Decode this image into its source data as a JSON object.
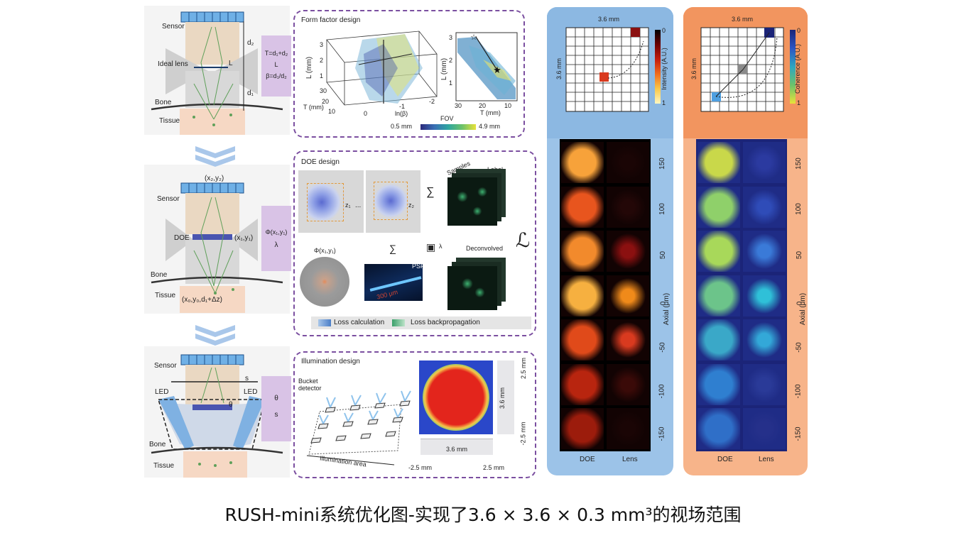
{
  "caption": "RUSH-mini系统优化图-实现了3.6 × 3.6 × 0.3 mm³的视场范围",
  "left": {
    "sensor": "Sensor",
    "ideal_lens": "Ideal lens",
    "L": "L",
    "d2": "d₂",
    "d1": "d₁",
    "bone": "Bone",
    "tissue": "Tissue",
    "doe": "DOE",
    "led": "LED",
    "s": "s",
    "theta": "θ",
    "x2y2": "(x₂,y₂)",
    "x1y1": "(x₁,y₁)",
    "x0y0": "(x₀,y₀,d₁+Δz)",
    "param1_a": "T=d₁+d₂",
    "param1_b": "L",
    "param1_c": "β=d₁/d₂",
    "param2_a": "Φ(x₁,y₁)",
    "param2_b": "λ",
    "param3_a": "θ",
    "param3_b": "s"
  },
  "panel1": {
    "title": "Form factor design",
    "l_mm": "L (mm)",
    "t_mm": "T (mm)",
    "ln_beta": "ln(β)",
    "fov": "FOV",
    "fov_min": "0.5 mm",
    "fov_max": "4.9 mm",
    "ticks_L": [
      "3",
      "2",
      "1"
    ],
    "ticks_T3d": [
      "30",
      "20",
      "10"
    ],
    "ticks_beta": [
      "0",
      "-1",
      "-2"
    ],
    "ticks_T2d": [
      "30",
      "20",
      "10"
    ],
    "ticks_L2d": [
      "3",
      "2",
      "1"
    ]
  },
  "panel2": {
    "title": "DOE design",
    "samples": "Samples",
    "label": "Label",
    "deconvolved": "Deconvolved",
    "phi": "Φ(x₁,y₁)",
    "psf": "PSF",
    "um300": "300 μm",
    "z1": "z₁",
    "z2": "z₂",
    "dots": "...",
    "lambda": "λ",
    "loss_calc": "Loss calculation",
    "loss_back": "Loss backpropagation",
    "loss_symbol": "ℒ"
  },
  "panel3": {
    "title": "Illumination design",
    "bucket": "Bucket detector",
    "illum_area": "Illumination area",
    "mm36": "3.6 mm",
    "mm36v": "3.6 mm",
    "mm25a": "2.5 mm",
    "mm25b": "-2.5 mm",
    "mm25c": "-2.5 mm",
    "mm25d": "2.5 mm"
  },
  "right_blue": {
    "size_h": "3.6 mm",
    "size_v": "3.6 mm",
    "cbar_label": "Intensity (A.U.)",
    "cbar_top": "0",
    "cbar_bottom": "1",
    "col1": "DOE",
    "col2": "Lens",
    "axial": "Axial (μm)",
    "ticks": [
      "150",
      "100",
      "50",
      "0",
      "-50",
      "-100",
      "-150"
    ]
  },
  "right_orange": {
    "size_h": "3.6 mm",
    "size_v": "3.6 mm",
    "cbar_label": "Coherence (A.U.)",
    "cbar_top": "0",
    "cbar_bottom": "1",
    "col1": "DOE",
    "col2": "Lens",
    "axial": "Axial (μm)",
    "ticks": [
      "150",
      "100",
      "50",
      "0",
      "-50",
      "-100",
      "-150"
    ]
  },
  "colors": {
    "purple": "#d9c3e6",
    "dash": "#7b4fa0",
    "blue_panel": "#9cc3e8",
    "orange_panel": "#f3a170",
    "sensor": "#6fb0e6"
  }
}
